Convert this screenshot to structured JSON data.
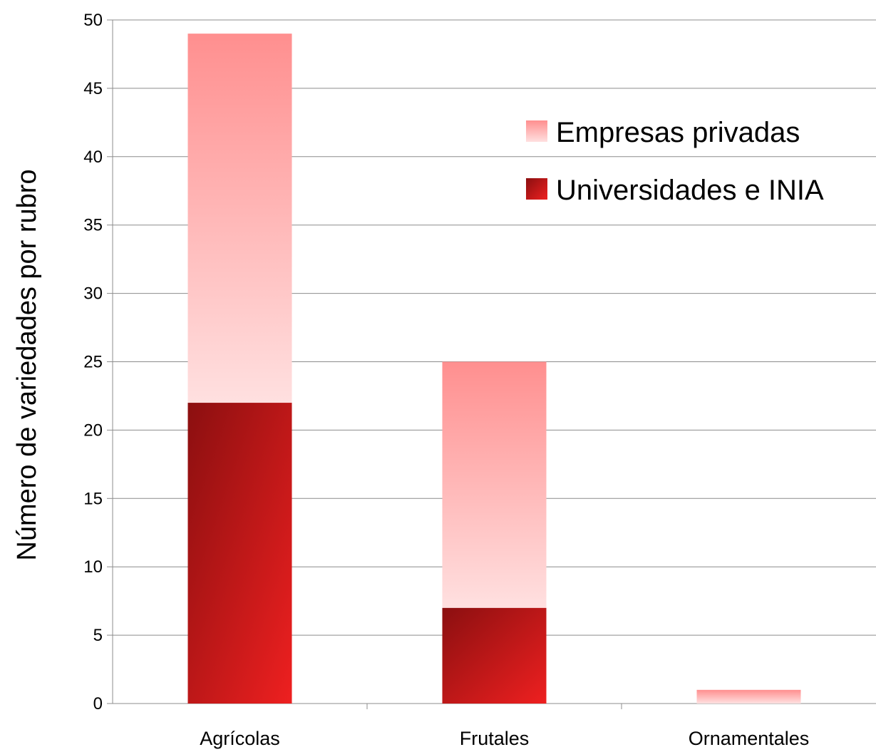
{
  "chart_data": {
    "type": "bar",
    "stacked": true,
    "categories": [
      "Agrícolas",
      "Frutales",
      "Ornamentales"
    ],
    "series": [
      {
        "name": "Universidades e INIA",
        "values": [
          22,
          7,
          0
        ],
        "color_dark": "#8b0f10",
        "color_light": "#ee2020"
      },
      {
        "name": "Empresas privadas",
        "values": [
          27,
          18,
          1
        ],
        "color_top": "#ff8f8f",
        "color_bottom": "#ffe0e0"
      }
    ],
    "title": "",
    "xlabel": "",
    "ylabel": "Número de variedades por rubro",
    "ylim": [
      0,
      50
    ],
    "yticks": [
      0,
      5,
      10,
      15,
      20,
      25,
      30,
      35,
      40,
      45,
      50
    ],
    "grid": true,
    "legend_position": "top-right",
    "legend": [
      "Empresas privadas",
      "Universidades e INIA"
    ]
  }
}
